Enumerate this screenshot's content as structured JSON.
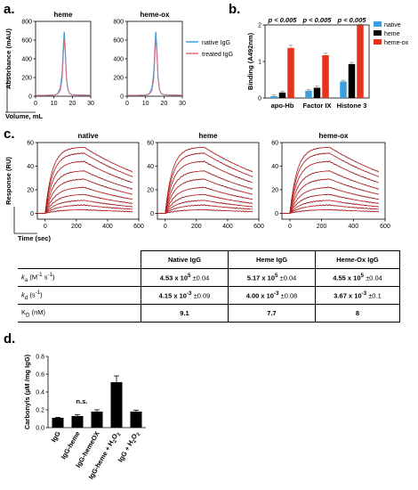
{
  "panels": {
    "a": "a.",
    "b": "b.",
    "c": "c.",
    "d": "d."
  },
  "colors": {
    "native": "#3ba0dc",
    "heme": "#000000",
    "heme_ox": "#e8331c",
    "fit": "#d62020",
    "treated": "#e06b80"
  },
  "chart_data": [
    {
      "id": "a",
      "type": "line",
      "titles": [
        "heme",
        "heme-ox"
      ],
      "ylabel": "Absorbance (mAU)",
      "xlabel": "Volume, mL",
      "xlim": [
        0,
        30
      ],
      "ylim": [
        0,
        800
      ],
      "xticks": [
        "0",
        "10",
        "20",
        "30"
      ],
      "yticks": [
        "0",
        "200",
        "400",
        "600",
        "800"
      ],
      "legend": [
        "native IgG",
        "treated IgG"
      ],
      "peak": {
        "x": 15.6,
        "y": 690
      },
      "series": [
        {
          "name": "native IgG",
          "points": [
            [
              0,
              10
            ],
            [
              5,
              10
            ],
            [
              10,
              12
            ],
            [
              12,
              25
            ],
            [
              13.5,
              90
            ],
            [
              14.5,
              260
            ],
            [
              15.2,
              560
            ],
            [
              15.6,
              690
            ],
            [
              16.1,
              520
            ],
            [
              16.8,
              200
            ],
            [
              17.6,
              70
            ],
            [
              18.5,
              30
            ],
            [
              20,
              15
            ],
            [
              30,
              10
            ]
          ]
        },
        {
          "name": "treated IgG",
          "points": [
            [
              0,
              10
            ],
            [
              5,
              10
            ],
            [
              10,
              12
            ],
            [
              12,
              22
            ],
            [
              13.5,
              60
            ],
            [
              14.5,
              190
            ],
            [
              15.2,
              470
            ],
            [
              15.6,
              610
            ],
            [
              16.1,
              470
            ],
            [
              16.8,
              185
            ],
            [
              17.6,
              65
            ],
            [
              18.5,
              30
            ],
            [
              20,
              15
            ],
            [
              30,
              10
            ]
          ]
        }
      ]
    },
    {
      "id": "b",
      "type": "bar",
      "ylabel": "Binding (A492nm)",
      "ylim": [
        0,
        2
      ],
      "yticks": [
        "0",
        "1",
        "2"
      ],
      "categories": [
        "apo-Hb",
        "Factor IX",
        "Histone 3"
      ],
      "annotations": [
        "p < 0.005",
        "p < 0.005",
        "p < 0.005"
      ],
      "legend": [
        "native",
        "heme",
        "heme-ox"
      ],
      "series": [
        {
          "name": "native",
          "values": [
            0.05,
            0.2,
            0.45
          ],
          "errors": [
            0.01,
            0.01,
            0.01
          ]
        },
        {
          "name": "heme",
          "values": [
            0.15,
            0.28,
            0.93
          ],
          "errors": [
            0.01,
            0.02,
            0.02
          ]
        },
        {
          "name": "heme-ox",
          "values": [
            1.37,
            1.17,
            1.99
          ],
          "errors": [
            0.05,
            0.03,
            0.01
          ]
        }
      ]
    },
    {
      "id": "c",
      "type": "line",
      "titles": [
        "native",
        "heme",
        "heme-ox"
      ],
      "ylabel": "Response (RU)",
      "xlabel": "Time (sec)",
      "xlim": [
        -50,
        600
      ],
      "ylim": [
        -5,
        60
      ],
      "xticks": [
        "0",
        "200",
        "400",
        "600"
      ],
      "yticks": [
        "0",
        "20",
        "40",
        "60"
      ],
      "association_end_sec": 250,
      "plateaus": [
        [
          56,
          51,
          44,
          36,
          29,
          22,
          16,
          11,
          7,
          3
        ],
        [
          56,
          51,
          44,
          36,
          29,
          22,
          16,
          11,
          7,
          3
        ],
        [
          56,
          51,
          44,
          36,
          29,
          22,
          16,
          11,
          7,
          3
        ]
      ]
    },
    {
      "id": "d",
      "type": "bar",
      "ylabel": "Carbonyls (µM /mg IgG)",
      "ylim": [
        0,
        0.8
      ],
      "yticks": [
        "0.0",
        "0.2",
        "0.4",
        "0.6",
        "0.8"
      ],
      "categories": [
        "IgG",
        "IgG-heme",
        "IgG-hemeOX",
        "IgG-heme + H2O2",
        "IgG + H2O2"
      ],
      "values": [
        0.11,
        0.13,
        0.18,
        0.51,
        0.18
      ],
      "errors": [
        0.005,
        0.015,
        0.02,
        0.07,
        0.015
      ],
      "annotations": [
        "n.s."
      ]
    }
  ],
  "table": {
    "headers": [
      "Native IgG",
      "Heme IgG",
      "Heme-Ox IgG"
    ],
    "rows": [
      {
        "label": "ka (M-1 s-1)",
        "sym": "k",
        "sub": "a",
        "unit": " (M",
        "sup1": "-1",
        "mid": " s",
        "sup2": "-1",
        "end": ")",
        "vals": [
          [
            "4.53 x 10",
            "5",
            " ±0.04"
          ],
          [
            "5.17 x 10",
            "5",
            " ±0.04"
          ],
          [
            "4.55 x 10",
            "5",
            " ±0.04"
          ]
        ]
      },
      {
        "label": "kd (s-1)",
        "sym": "k",
        "sub": "d",
        "unit": " (s",
        "sup1": "-1",
        "mid": "",
        "sup2": "",
        "end": ")",
        "vals": [
          [
            "4.15 x 10",
            "-3",
            " ±0.09"
          ],
          [
            "4.00 x 10",
            "-3",
            " ±0.08"
          ],
          [
            "3.67 x 10",
            "-3",
            " ±0.1"
          ]
        ]
      },
      {
        "label": "KD (nM)",
        "sym": "K",
        "sub": "D",
        "unit": " (nM)",
        "sup1": "",
        "mid": "",
        "sup2": "",
        "end": "",
        "vals": [
          [
            "9.1",
            "",
            ""
          ],
          [
            "7.7",
            "",
            ""
          ],
          [
            "8",
            "",
            ""
          ]
        ]
      }
    ]
  }
}
